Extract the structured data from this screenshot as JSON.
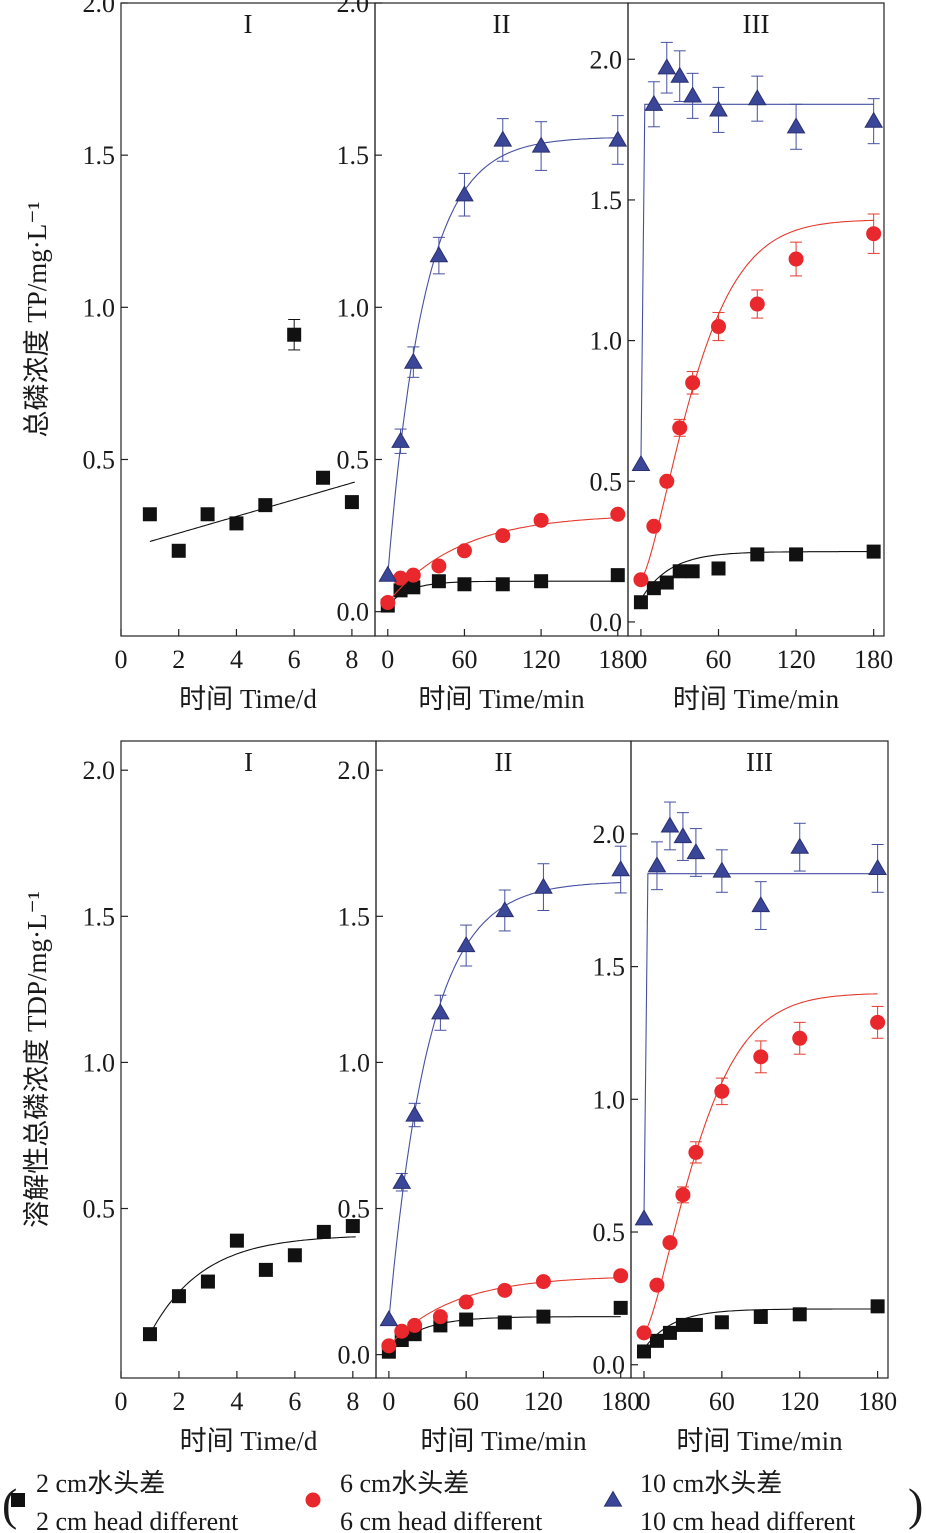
{
  "colors": {
    "black": "#111111",
    "red": "#e8282c",
    "blue": "#3a4698",
    "blue_edge": "#2a3070",
    "red_line": "#e33b2e",
    "blue_line": "#4650a0"
  },
  "legend": [
    {
      "zh": "2 cm水头差",
      "en": "2 cm head different",
      "marker": "square",
      "color": "#111111"
    },
    {
      "zh": "6 cm水头差",
      "en": "6 cm head different",
      "marker": "circle",
      "color": "#e8282c"
    },
    {
      "zh": "10 cm水头差",
      "en": "10 cm head different",
      "marker": "triangle",
      "color": "#3a4698"
    }
  ],
  "legend_paren_open": "(",
  "legend_paren_close": ")",
  "chart_data": [
    {
      "type": "scatter",
      "panel": "I",
      "row": "top",
      "title": "I",
      "ylabel": "总磷浓度 TP/mg·L⁻¹",
      "xlabel": "时间 Time/d",
      "xlim": [
        0,
        8.8
      ],
      "ylim": [
        -0.08,
        2.0
      ],
      "xticks": [
        0,
        2,
        4,
        6,
        8
      ],
      "yticks": [
        0.5,
        1.0,
        1.5,
        2.0
      ],
      "series": [
        {
          "marker": "square",
          "x": [
            1,
            2,
            3,
            4,
            5,
            6,
            7,
            8
          ],
          "y": [
            0.32,
            0.2,
            0.32,
            0.29,
            0.35,
            0.91,
            0.44,
            0.36
          ],
          "err": [
            0,
            0,
            0,
            0,
            0,
            0.05,
            0,
            0
          ],
          "fit": {
            "kind": "linear",
            "a": 0.203,
            "b": 0.0275,
            "x0": 1,
            "x1": 8.1
          }
        }
      ]
    },
    {
      "type": "scatter",
      "panel": "II",
      "row": "top",
      "title": "II",
      "xlabel": "时间 Time/min",
      "xlim": [
        -10,
        188
      ],
      "ylim": [
        -0.08,
        2.0
      ],
      "xticks": [
        0,
        60,
        120,
        180
      ],
      "yticks": [
        0.0,
        0.5,
        1.0,
        1.5,
        2.0
      ],
      "series": [
        {
          "marker": "square",
          "x": [
            0,
            10,
            20,
            40,
            60,
            90,
            120,
            180
          ],
          "y": [
            0.02,
            0.07,
            0.08,
            0.1,
            0.09,
            0.09,
            0.1,
            0.12
          ],
          "err": [
            0,
            0,
            0,
            0,
            0,
            0,
            0,
            0
          ],
          "fit": {
            "kind": "expsat",
            "A": 0.02,
            "B": 0.1,
            "k": 0.06,
            "x0": 0,
            "x1": 180
          }
        },
        {
          "marker": "circle",
          "x": [
            0,
            10,
            20,
            40,
            60,
            90,
            120,
            180
          ],
          "y": [
            0.03,
            0.11,
            0.12,
            0.15,
            0.2,
            0.25,
            0.3,
            0.32
          ],
          "err": [
            0,
            0,
            0,
            0,
            0,
            0,
            0,
            0
          ],
          "fit": {
            "kind": "expsat",
            "A": 0.03,
            "B": 0.32,
            "k": 0.018,
            "x0": 0,
            "x1": 180
          }
        },
        {
          "marker": "triangle",
          "x": [
            0,
            10,
            20,
            40,
            60,
            90,
            120,
            180
          ],
          "y": [
            0.12,
            0.56,
            0.82,
            1.17,
            1.37,
            1.55,
            1.53,
            1.55
          ],
          "err": [
            0,
            0.04,
            0.05,
            0.06,
            0.07,
            0.07,
            0.08,
            0.08
          ],
          "fit": {
            "kind": "expsat",
            "A": 0.12,
            "B": 1.56,
            "k": 0.035,
            "x0": 0,
            "x1": 180
          }
        }
      ]
    },
    {
      "type": "scatter",
      "panel": "III",
      "row": "top",
      "title": "III",
      "xlabel": "时间 Time/min",
      "xlim": [
        -10,
        188
      ],
      "ylim": [
        -0.05,
        2.2
      ],
      "xticks": [
        0,
        60,
        120,
        180
      ],
      "yticks": [
        0.0,
        0.5,
        1.0,
        1.5,
        2.0
      ],
      "series": [
        {
          "marker": "square",
          "x": [
            0,
            10,
            20,
            30,
            40,
            60,
            90,
            120,
            180
          ],
          "y": [
            0.07,
            0.12,
            0.14,
            0.18,
            0.18,
            0.19,
            0.24,
            0.24,
            0.25
          ],
          "err": [
            0,
            0,
            0,
            0,
            0,
            0,
            0,
            0,
            0
          ],
          "fit": {
            "kind": "expsat",
            "A": 0.08,
            "B": 0.25,
            "k": 0.045,
            "x0": 0,
            "x1": 180
          }
        },
        {
          "marker": "circle",
          "x": [
            0,
            10,
            20,
            30,
            40,
            60,
            90,
            120,
            180
          ],
          "y": [
            0.15,
            0.34,
            0.5,
            0.69,
            0.85,
            1.05,
            1.13,
            1.29,
            1.38
          ],
          "err": [
            0,
            0,
            0,
            0.03,
            0.04,
            0.05,
            0.05,
            0.06,
            0.07
          ],
          "fit": {
            "kind": "sigmoid",
            "A": 0.15,
            "B": 1.43,
            "k": 0.0205,
            "n": 1.4,
            "x0": 0,
            "x1": 180
          }
        },
        {
          "marker": "triangle",
          "x": [
            0,
            10,
            20,
            30,
            40,
            60,
            90,
            120,
            180
          ],
          "y": [
            0.56,
            1.84,
            1.97,
            1.94,
            1.87,
            1.82,
            1.86,
            1.76,
            1.78
          ],
          "err": [
            0,
            0.08,
            0.09,
            0.09,
            0.08,
            0.08,
            0.08,
            0.08,
            0.08
          ],
          "fit": {
            "kind": "step",
            "A": 0.56,
            "B": 1.84,
            "k": 0.9,
            "x0": 0,
            "x1": 180
          }
        }
      ]
    },
    {
      "type": "scatter",
      "panel": "I",
      "row": "bottom",
      "title": "I",
      "ylabel": "溶解性总磷浓度 TDP/mg·L⁻¹",
      "xlabel": "时间 Time/d",
      "xlim": [
        0,
        8.8
      ],
      "ylim": [
        -0.08,
        2.1
      ],
      "xticks": [
        0,
        2,
        4,
        6,
        8
      ],
      "yticks": [
        0.5,
        1.0,
        1.5,
        2.0
      ],
      "series": [
        {
          "marker": "square",
          "x": [
            1,
            2,
            3,
            4,
            5,
            6,
            7,
            8
          ],
          "y": [
            0.07,
            0.2,
            0.25,
            0.39,
            0.29,
            0.34,
            0.42,
            0.44
          ],
          "err": [
            0,
            0,
            0,
            0,
            0,
            0,
            0,
            0
          ],
          "fit": {
            "kind": "expsat",
            "A": 0.07,
            "B": 0.41,
            "k": 0.55,
            "x0": 1,
            "x1": 8.1
          }
        }
      ]
    },
    {
      "type": "scatter",
      "panel": "II",
      "row": "bottom",
      "title": "II",
      "xlabel": "时间 Time/min",
      "xlim": [
        -10,
        188
      ],
      "ylim": [
        -0.08,
        2.1
      ],
      "xticks": [
        0,
        60,
        120,
        180
      ],
      "yticks": [
        0.0,
        0.5,
        1.0,
        1.5,
        2.0
      ],
      "series": [
        {
          "marker": "square",
          "x": [
            0,
            10,
            20,
            40,
            60,
            90,
            120,
            180
          ],
          "y": [
            0.01,
            0.05,
            0.07,
            0.1,
            0.12,
            0.11,
            0.13,
            0.16
          ],
          "err": [
            0,
            0,
            0,
            0,
            0,
            0,
            0,
            0
          ],
          "fit": {
            "kind": "expsat",
            "A": 0.01,
            "B": 0.13,
            "k": 0.04,
            "x0": 0,
            "x1": 180
          }
        },
        {
          "marker": "circle",
          "x": [
            0,
            10,
            20,
            40,
            60,
            90,
            120,
            180
          ],
          "y": [
            0.03,
            0.08,
            0.1,
            0.13,
            0.18,
            0.22,
            0.25,
            0.27
          ],
          "err": [
            0,
            0,
            0,
            0,
            0,
            0,
            0,
            0
          ],
          "fit": {
            "kind": "expsat",
            "A": 0.03,
            "B": 0.27,
            "k": 0.02,
            "x0": 0,
            "x1": 180
          }
        },
        {
          "marker": "triangle",
          "x": [
            0,
            10,
            20,
            40,
            60,
            90,
            120,
            180
          ],
          "y": [
            0.12,
            0.59,
            0.82,
            1.17,
            1.4,
            1.52,
            1.6,
            1.66
          ],
          "err": [
            0,
            0.03,
            0.04,
            0.06,
            0.07,
            0.07,
            0.08,
            0.08
          ],
          "fit": {
            "kind": "expsat",
            "A": 0.12,
            "B": 1.62,
            "k": 0.032,
            "x0": 0,
            "x1": 180
          }
        }
      ]
    },
    {
      "type": "scatter",
      "panel": "III",
      "row": "bottom",
      "title": "III",
      "xlabel": "时间 Time/min",
      "xlim": [
        -10,
        188
      ],
      "ylim": [
        -0.05,
        2.35
      ],
      "xticks": [
        0,
        60,
        120,
        180
      ],
      "yticks": [
        0.0,
        0.5,
        1.0,
        1.5,
        2.0
      ],
      "series": [
        {
          "marker": "square",
          "x": [
            0,
            10,
            20,
            30,
            40,
            60,
            90,
            120,
            180
          ],
          "y": [
            0.05,
            0.09,
            0.12,
            0.15,
            0.15,
            0.16,
            0.18,
            0.19,
            0.22
          ],
          "err": [
            0,
            0,
            0,
            0,
            0,
            0,
            0,
            0,
            0
          ],
          "fit": {
            "kind": "expsat",
            "A": 0.06,
            "B": 0.21,
            "k": 0.045,
            "x0": 0,
            "x1": 180
          }
        },
        {
          "marker": "circle",
          "x": [
            0,
            10,
            20,
            30,
            40,
            60,
            90,
            120,
            180
          ],
          "y": [
            0.12,
            0.3,
            0.46,
            0.64,
            0.8,
            1.03,
            1.16,
            1.23,
            1.29
          ],
          "err": [
            0,
            0,
            0,
            0.03,
            0.04,
            0.05,
            0.06,
            0.06,
            0.06
          ],
          "fit": {
            "kind": "sigmoid",
            "A": 0.12,
            "B": 1.4,
            "k": 0.0205,
            "n": 1.4,
            "x0": 0,
            "x1": 180
          }
        },
        {
          "marker": "triangle",
          "x": [
            0,
            10,
            20,
            30,
            40,
            60,
            90,
            120,
            180
          ],
          "y": [
            0.55,
            1.88,
            2.03,
            1.99,
            1.93,
            1.86,
            1.73,
            1.95,
            1.87
          ],
          "err": [
            0,
            0.09,
            0.09,
            0.09,
            0.09,
            0.08,
            0.09,
            0.09,
            0.09
          ],
          "fit": {
            "kind": "step",
            "A": 0.55,
            "B": 1.85,
            "k": 0.9,
            "x0": 0,
            "x1": 180
          }
        }
      ]
    }
  ]
}
